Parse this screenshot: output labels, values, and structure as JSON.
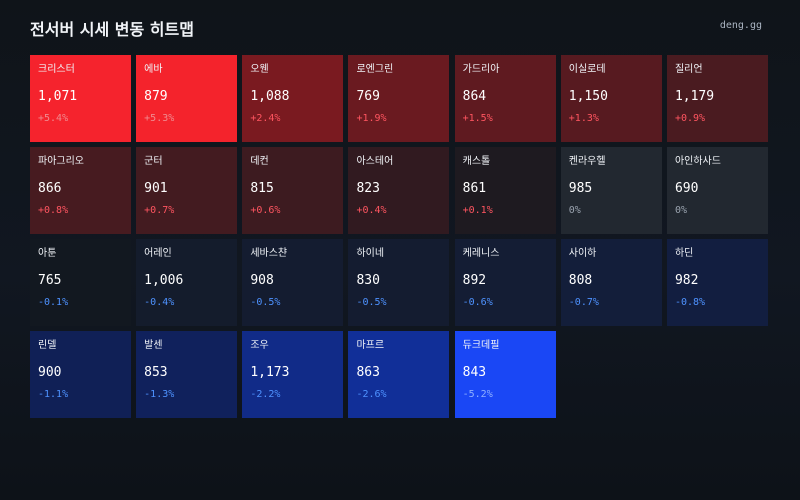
{
  "header": {
    "title": "전서버 시세 변동 히트맵",
    "brand": "deng.gg"
  },
  "tiles": [
    {
      "name": "크리스터",
      "value": "1,071",
      "change": "+5.4%",
      "direction": "up",
      "color": "#f5232d",
      "change_color": "#f08a8f"
    },
    {
      "name": "에바",
      "value": "879",
      "change": "+5.3%",
      "direction": "up",
      "color": "#f4232c",
      "change_color": "#f08a8f"
    },
    {
      "name": "오웬",
      "value": "1,088",
      "change": "+2.4%",
      "direction": "up",
      "color": "#7a1a20",
      "change_color": "#ff5560"
    },
    {
      "name": "로엔그린",
      "value": "769",
      "change": "+1.9%",
      "direction": "up",
      "color": "#6a1a20",
      "change_color": "#ff5560"
    },
    {
      "name": "가드리아",
      "value": "864",
      "change": "+1.5%",
      "direction": "up",
      "color": "#5f1a20",
      "change_color": "#ff5560"
    },
    {
      "name": "이실로테",
      "value": "1,150",
      "change": "+1.3%",
      "direction": "up",
      "color": "#571a20",
      "change_color": "#ff5560"
    },
    {
      "name": "질리언",
      "value": "1,179",
      "change": "+0.9%",
      "direction": "up",
      "color": "#4a1b20",
      "change_color": "#ff5560"
    },
    {
      "name": "파아그리오",
      "value": "866",
      "change": "+0.8%",
      "direction": "up",
      "color": "#471b20",
      "change_color": "#ff5560"
    },
    {
      "name": "군터",
      "value": "901",
      "change": "+0.7%",
      "direction": "up",
      "color": "#431b20",
      "change_color": "#ff5560"
    },
    {
      "name": "데컨",
      "value": "815",
      "change": "+0.6%",
      "direction": "up",
      "color": "#3d1b20",
      "change_color": "#ff5560"
    },
    {
      "name": "아스테어",
      "value": "823",
      "change": "+0.4%",
      "direction": "up",
      "color": "#311a20",
      "change_color": "#ff5560"
    },
    {
      "name": "캐스톨",
      "value": "861",
      "change": "+0.1%",
      "direction": "up",
      "color": "#1e1a20",
      "change_color": "#ff5560"
    },
    {
      "name": "켄라우헬",
      "value": "985",
      "change": "0%",
      "direction": "flat",
      "color": "#222830",
      "change_color": "#9aa3af"
    },
    {
      "name": "아인하사드",
      "value": "690",
      "change": "0%",
      "direction": "flat",
      "color": "#222830",
      "change_color": "#9aa3af"
    },
    {
      "name": "아툰",
      "value": "765",
      "change": "-0.1%",
      "direction": "down",
      "color": "#121820",
      "change_color": "#4e92ff"
    },
    {
      "name": "어레인",
      "value": "1,006",
      "change": "-0.4%",
      "direction": "down",
      "color": "#141c2c",
      "change_color": "#4e92ff"
    },
    {
      "name": "세바스챤",
      "value": "908",
      "change": "-0.5%",
      "direction": "down",
      "color": "#141c30",
      "change_color": "#4e92ff"
    },
    {
      "name": "하이네",
      "value": "830",
      "change": "-0.5%",
      "direction": "down",
      "color": "#141c30",
      "change_color": "#4e92ff"
    },
    {
      "name": "케레니스",
      "value": "892",
      "change": "-0.6%",
      "direction": "down",
      "color": "#141d34",
      "change_color": "#4e92ff"
    },
    {
      "name": "사이하",
      "value": "808",
      "change": "-0.7%",
      "direction": "down",
      "color": "#131e3a",
      "change_color": "#4e92ff"
    },
    {
      "name": "하딘",
      "value": "982",
      "change": "-0.8%",
      "direction": "down",
      "color": "#121e40",
      "change_color": "#4e92ff"
    },
    {
      "name": "린델",
      "value": "900",
      "change": "-1.1%",
      "direction": "down",
      "color": "#102056",
      "change_color": "#4e92ff"
    },
    {
      "name": "발센",
      "value": "853",
      "change": "-1.3%",
      "direction": "down",
      "color": "#10215c",
      "change_color": "#4e92ff"
    },
    {
      "name": "조우",
      "value": "1,173",
      "change": "-2.2%",
      "direction": "down",
      "color": "#112b88",
      "change_color": "#4e92ff"
    },
    {
      "name": "마프르",
      "value": "863",
      "change": "-2.6%",
      "direction": "down",
      "color": "#112f98",
      "change_color": "#4e92ff"
    },
    {
      "name": "듀크데필",
      "value": "843",
      "change": "-5.2%",
      "direction": "down",
      "color": "#1a47f5",
      "change_color": "#8fb0ff"
    }
  ]
}
